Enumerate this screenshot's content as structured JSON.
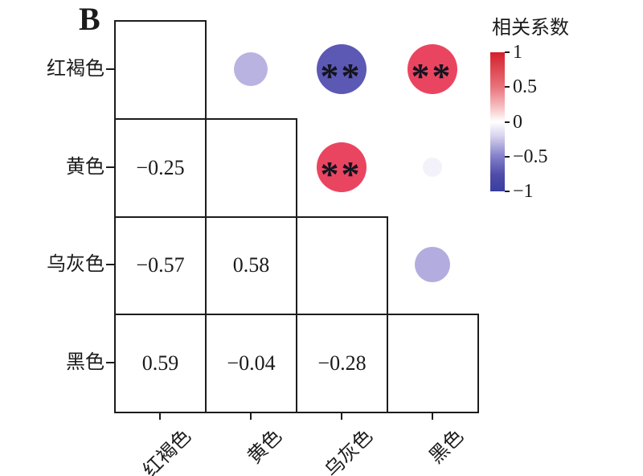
{
  "panel_label": "B",
  "chart_data": {
    "type": "heatmap",
    "subtype": "correlation-matrix",
    "variables": [
      "红褐色",
      "黄色",
      "乌灰色",
      "黑色"
    ],
    "pairs": [
      {
        "var_a": "红褐色",
        "var_b": "黄色",
        "a": 0,
        "b": 1,
        "value": -0.25,
        "significance": "",
        "circle_color": "#b9b3e1",
        "circle_radius": 21
      },
      {
        "var_a": "红褐色",
        "var_b": "乌灰色",
        "a": 0,
        "b": 2,
        "value": -0.57,
        "significance": "**",
        "circle_color": "#5c59b5",
        "circle_radius": 31
      },
      {
        "var_a": "红褐色",
        "var_b": "黑色",
        "a": 0,
        "b": 3,
        "value": 0.59,
        "significance": "**",
        "circle_color": "#ea4560",
        "circle_radius": 31
      },
      {
        "var_a": "黄色",
        "var_b": "乌灰色",
        "a": 1,
        "b": 2,
        "value": 0.58,
        "significance": "**",
        "circle_color": "#ea4560",
        "circle_radius": 31
      },
      {
        "var_a": "黄色",
        "var_b": "黑色",
        "a": 1,
        "b": 3,
        "value": -0.04,
        "significance": "",
        "circle_color": "#f3f2fb",
        "circle_radius": 12
      },
      {
        "var_a": "乌灰色",
        "var_b": "黑色",
        "a": 2,
        "b": 3,
        "value": -0.28,
        "significance": "",
        "circle_color": "#b3acdf",
        "circle_radius": 22
      }
    ],
    "legend": {
      "title": "相关系数",
      "ticks": [
        "1",
        "0.5",
        "0",
        "−0.5",
        "−1"
      ],
      "range": [
        -1,
        1
      ],
      "gradient_stops": [
        {
          "pos": "0%",
          "color": "#d51f2b"
        },
        {
          "pos": "25%",
          "color": "#e8737b"
        },
        {
          "pos": "40%",
          "color": "#f7c3c6"
        },
        {
          "pos": "50%",
          "color": "#ffffff"
        },
        {
          "pos": "60%",
          "color": "#d8d4ee"
        },
        {
          "pos": "75%",
          "color": "#837fc9"
        },
        {
          "pos": "88%",
          "color": "#4f4caa"
        },
        {
          "pos": "100%",
          "color": "#3a3e9e"
        }
      ]
    },
    "layout": {
      "grid_on": false,
      "legend_position": "right",
      "lower_triangle": "numbers",
      "upper_triangle": "circles"
    }
  }
}
